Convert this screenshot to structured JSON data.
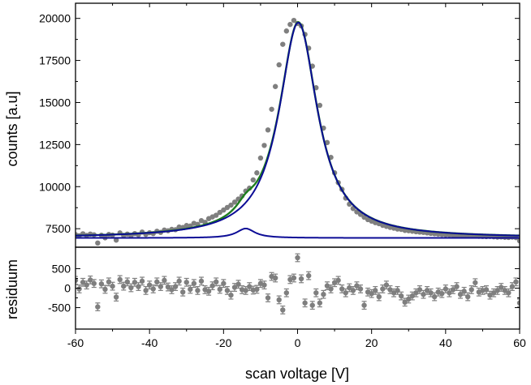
{
  "chart_data": {
    "type": "scatter",
    "xlabel": "scan voltage [V]",
    "xlim": [
      -60,
      60
    ],
    "x_ticks": [
      -60,
      -40,
      -20,
      0,
      20,
      40,
      60
    ],
    "x_tick_labels": [
      "-60",
      "-40",
      "-20",
      "0",
      "20",
      "40",
      "60"
    ],
    "colors": {
      "points": "#7f7f7f",
      "fit_total": "#1e7d1e",
      "fit_components": "#0c0c96",
      "axes": "#000000"
    },
    "panels": [
      {
        "name": "counts",
        "ylabel": "counts [a.u]",
        "ylim": [
          6400,
          20900
        ],
        "y_ticks": [
          7500,
          10000,
          12500,
          15000,
          17500,
          20000
        ],
        "y_tick_labels": [
          "7500",
          "10000",
          "12500",
          "15000",
          "17500",
          "20000"
        ],
        "series": [
          {
            "kind": "points",
            "x": [
              -60,
              -59,
              -58,
              -57,
              -56,
              -55,
              -54,
              -53,
              -52,
              -51,
              -50,
              -49,
              -48,
              -47,
              -46,
              -45,
              -44,
              -43,
              -42,
              -41,
              -40,
              -39,
              -38,
              -37,
              -36,
              -35,
              -34,
              -33,
              -32,
              -31,
              -30,
              -29,
              -28,
              -27,
              -26,
              -25,
              -24,
              -23,
              -22,
              -21,
              -20,
              -19,
              -18,
              -17,
              -16,
              -15,
              -14,
              -13,
              -12,
              -11,
              -10,
              -9,
              -8,
              -7,
              -6,
              -5,
              -4,
              -3,
              -2,
              -1,
              0,
              1,
              2,
              3,
              4,
              5,
              6,
              7,
              8,
              9,
              10,
              11,
              12,
              13,
              14,
              15,
              16,
              17,
              18,
              19,
              20,
              21,
              22,
              23,
              24,
              25,
              26,
              27,
              28,
              29,
              30,
              31,
              32,
              33,
              34,
              35,
              36,
              37,
              38,
              39,
              40,
              41,
              42,
              43,
              44,
              45,
              46,
              47,
              48,
              49,
              50,
              51,
              52,
              53,
              54,
              55,
              56,
              57,
              58,
              59,
              60
            ],
            "y": [
              7150,
              7080,
              7200,
              7100,
              7180,
              7140,
              6650,
              7110,
              6960,
              7160,
              7120,
              6820,
              7250,
              7100,
              7180,
              7090,
              7210,
              7140,
              7300,
              7160,
              7260,
              7210,
              7350,
              7280,
              7420,
              7380,
              7460,
              7440,
              7600,
              7570,
              7690,
              7660,
              7820,
              7760,
              7980,
              7880,
              8100,
              8200,
              8300,
              8470,
              8610,
              8760,
              8900,
              9080,
              9260,
              9450,
              9740,
              9910,
              10400,
              10820,
              11700,
              12450,
              13370,
              14600,
              15950,
              17240,
              18460,
              19250,
              19640,
              19880,
              19700,
              19550,
              19050,
              18230,
              17160,
              15880,
              14830,
              13480,
              12620,
              11740,
              10820,
              10240,
              9840,
              9320,
              8960,
              8700,
              8500,
              8350,
              8180,
              8040,
              7950,
              7860,
              7800,
              7700,
              7640,
              7580,
              7530,
              7480,
              7460,
              7400,
              7380,
              7350,
              7320,
              7300,
              7280,
              7250,
              7220,
              7200,
              7180,
              7160,
              7150,
              7140,
              7120,
              7100,
              7110,
              7090,
              7080,
              7060,
              7070,
              7050,
              7040,
              7030,
              7040,
              7020,
              7000,
              7010,
              6990,
              6980,
              7000,
              6970,
              6780
            ]
          },
          {
            "kind": "line",
            "name": "total fit",
            "model": "lorentzian_sum",
            "baseline": 6950,
            "peaks": [
              {
                "amp": 12800,
                "center": 0.2,
                "hwhm": 6.3
              },
              {
                "amp": 560,
                "center": -14,
                "hwhm": 3
              }
            ]
          },
          {
            "kind": "line",
            "name": "main component",
            "model": "lorentzian_sum",
            "baseline": 6950,
            "peaks": [
              {
                "amp": 12800,
                "center": 0.2,
                "hwhm": 6.3
              }
            ]
          },
          {
            "kind": "line",
            "name": "side component",
            "model": "lorentzian_sum",
            "baseline": 6950,
            "peaks": [
              {
                "amp": 560,
                "center": -14,
                "hwhm": 3
              }
            ]
          }
        ]
      },
      {
        "name": "residuum",
        "ylabel": "residuum",
        "ylim": [
          -1050,
          1050
        ],
        "y_ticks": [
          -500,
          0,
          500
        ],
        "y_tick_labels": [
          "-500",
          "0",
          "500"
        ],
        "series": [
          {
            "kind": "points_with_error",
            "error": 100,
            "x": [
              -60,
              -59,
              -58,
              -57,
              -56,
              -55,
              -54,
              -53,
              -52,
              -51,
              -50,
              -49,
              -48,
              -47,
              -46,
              -45,
              -44,
              -43,
              -42,
              -41,
              -40,
              -39,
              -38,
              -37,
              -36,
              -35,
              -34,
              -33,
              -32,
              -31,
              -30,
              -29,
              -28,
              -27,
              -26,
              -25,
              -24,
              -23,
              -22,
              -21,
              -20,
              -19,
              -18,
              -17,
              -16,
              -15,
              -14,
              -13,
              -12,
              -11,
              -10,
              -9,
              -8,
              -7,
              -6,
              -5,
              -4,
              -3,
              -2,
              -1,
              0,
              1,
              2,
              3,
              4,
              5,
              6,
              7,
              8,
              9,
              10,
              11,
              12,
              13,
              14,
              15,
              16,
              17,
              18,
              19,
              20,
              21,
              22,
              23,
              24,
              25,
              26,
              27,
              28,
              29,
              30,
              31,
              32,
              33,
              34,
              35,
              36,
              37,
              38,
              39,
              40,
              41,
              42,
              43,
              44,
              45,
              46,
              47,
              48,
              49,
              50,
              51,
              52,
              53,
              54,
              55,
              56,
              57,
              58,
              59,
              60
            ],
            "y": [
              200,
              -20,
              150,
              80,
              210,
              120,
              -480,
              110,
              -30,
              160,
              50,
              -230,
              220,
              50,
              160,
              10,
              150,
              40,
              180,
              -60,
              80,
              -20,
              160,
              40,
              200,
              30,
              -40,
              40,
              180,
              -100,
              150,
              -30,
              120,
              -60,
              180,
              -40,
              -80,
              60,
              160,
              -30,
              120,
              -60,
              -180,
              20,
              100,
              -40,
              -60,
              40,
              -50,
              -30,
              120,
              80,
              -250,
              300,
              260,
              -300,
              -560,
              -120,
              220,
              260,
              780,
              240,
              -380,
              320,
              -440,
              -120,
              -380,
              -160,
              60,
              -20,
              140,
              200,
              -20,
              -120,
              10,
              -60,
              60,
              -20,
              -440,
              -100,
              -140,
              -60,
              -220,
              -20,
              80,
              -40,
              -120,
              -60,
              -200,
              -360,
              -280,
              -200,
              -120,
              -40,
              -160,
              -60,
              -120,
              -220,
              -100,
              -140,
              -20,
              -120,
              -40,
              40,
              -160,
              -80,
              -220,
              -40,
              140,
              -100,
              -60,
              -40,
              -180,
              -120,
              -60,
              20,
              -60,
              -120,
              40,
              160,
              -380
            ]
          }
        ]
      }
    ]
  }
}
